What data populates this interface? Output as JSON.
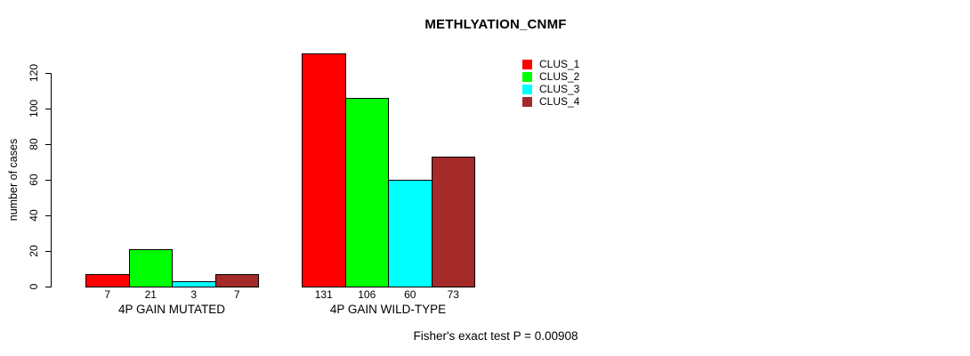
{
  "chart_data": {
    "type": "bar",
    "title": "METHLYATION_CNMF",
    "ylabel": "number of cases",
    "xlabel": "",
    "ylim": [
      0,
      131
    ],
    "yticks": [
      0,
      20,
      40,
      60,
      80,
      100,
      120
    ],
    "grid": false,
    "legend_position": "top-right",
    "categories": [
      "4P GAIN MUTATED",
      "4P GAIN WILD-TYPE"
    ],
    "series": [
      {
        "name": "CLUS_1",
        "color": "#ff0000",
        "values": [
          7,
          131
        ]
      },
      {
        "name": "CLUS_2",
        "color": "#00ff00",
        "values": [
          21,
          106
        ]
      },
      {
        "name": "CLUS_3",
        "color": "#00ffff",
        "values": [
          3,
          60
        ]
      },
      {
        "name": "CLUS_4",
        "color": "#a52a2a",
        "values": [
          7,
          73
        ]
      }
    ],
    "value_labels_shown": true,
    "annotation": "Fisher's exact test P = 0.00908"
  },
  "colors": {
    "axis": "#000000",
    "text": "#000000",
    "background": "#ffffff"
  }
}
